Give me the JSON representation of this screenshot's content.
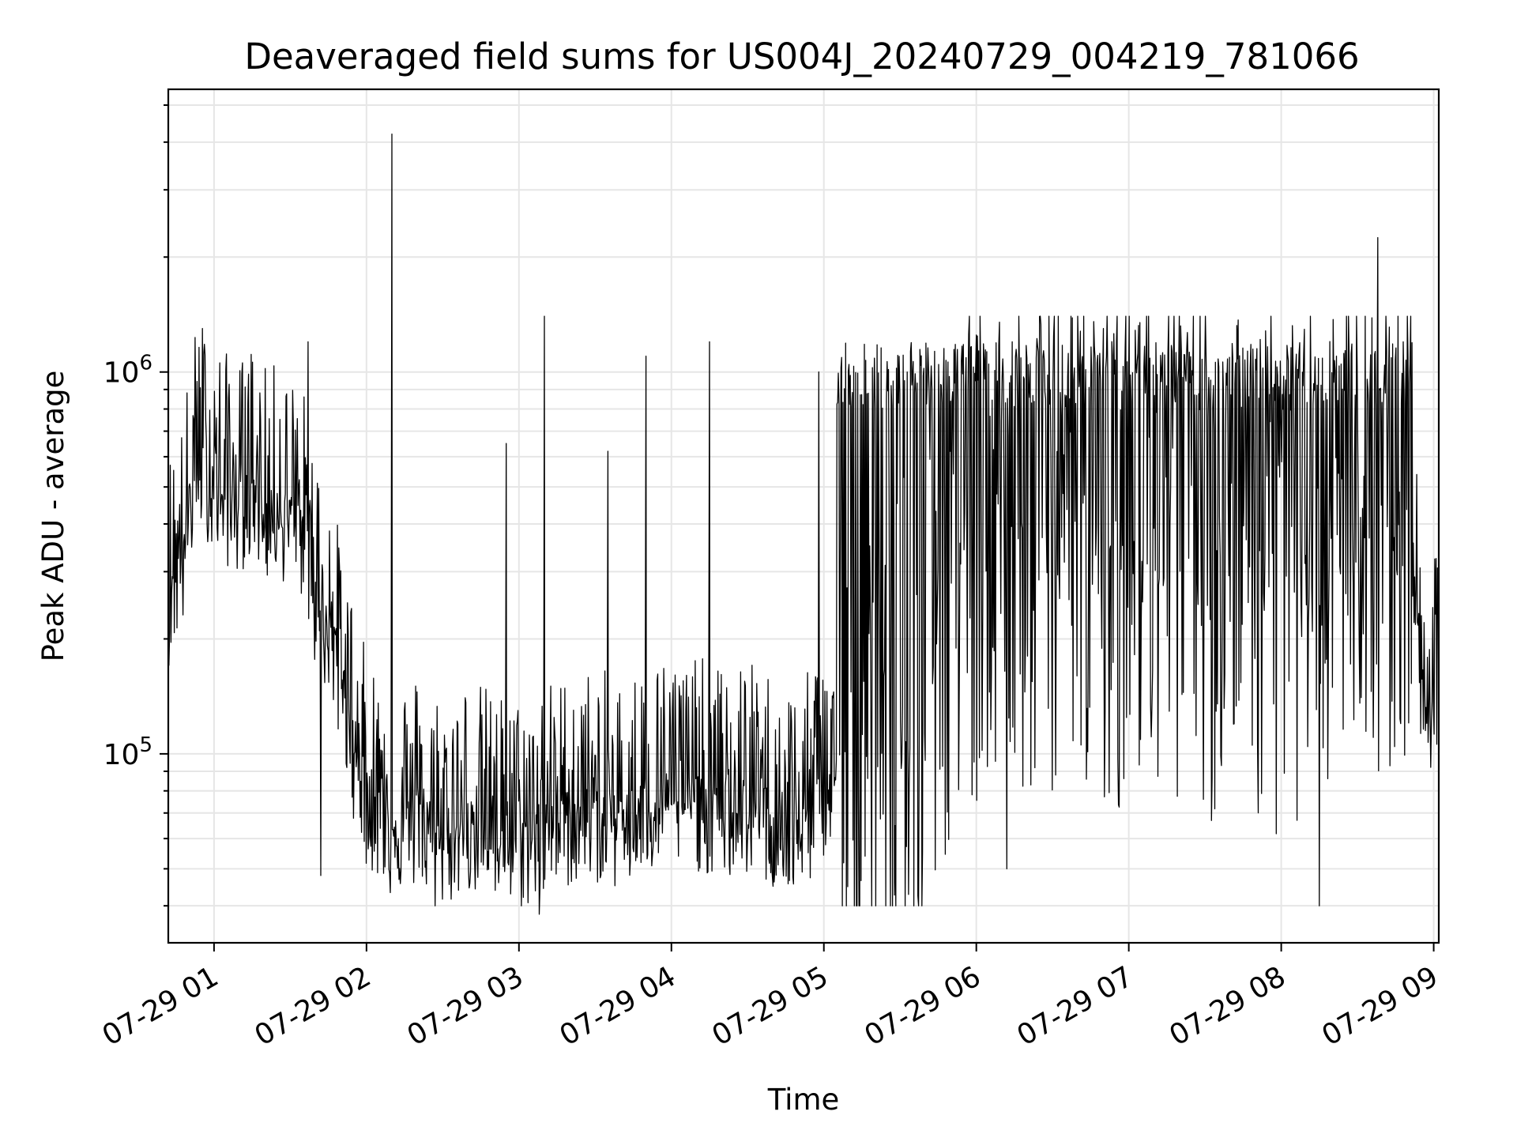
{
  "chart_data": {
    "type": "line",
    "title": "Deaveraged field sums for US004J_20240729_004219_781066",
    "xlabel": "Time",
    "ylabel": "Peak ADU - average",
    "yscale": "log",
    "ylim": [
      32000,
      5500000
    ],
    "xlim": [
      "07-29 00:42:00",
      "07-29 09:02:00"
    ],
    "grid": true,
    "line_color": "#000000",
    "grid_color": "#e6e6e6",
    "x_ticks": [
      "07-29 01",
      "07-29 02",
      "07-29 03",
      "07-29 04",
      "07-29 05",
      "07-29 06",
      "07-29 07",
      "07-29 08",
      "07-29 09"
    ],
    "y_ticks": [
      {
        "base": "10",
        "exp": "5",
        "value": 100000
      },
      {
        "base": "10",
        "exp": "6",
        "value": 1000000
      }
    ],
    "series": [
      {
        "points": [
          [
            "07-29 00:42",
            300000
          ],
          [
            "07-29 00:45",
            350000
          ],
          [
            "07-29 00:48",
            380000
          ],
          [
            "07-29 00:51",
            560000
          ],
          [
            "07-29 00:54",
            700000
          ],
          [
            "07-29 00:57",
            650000
          ],
          [
            "07-29 01:00",
            600000
          ],
          [
            "07-29 01:05",
            550000
          ],
          [
            "07-29 01:10",
            520000
          ],
          [
            "07-29 01:15",
            600000
          ],
          [
            "07-29 01:20",
            500000
          ],
          [
            "07-29 01:25",
            520000
          ],
          [
            "07-29 01:30",
            480000
          ],
          [
            "07-29 01:35",
            450000
          ],
          [
            "07-29 01:40",
            300000
          ],
          [
            "07-29 01:45",
            250000
          ],
          [
            "07-29 01:50",
            180000
          ],
          [
            "07-29 01:55",
            120000
          ],
          [
            "07-29 02:00",
            90000
          ],
          [
            "07-29 02:10",
            75000
          ],
          [
            "07-29 02:20",
            80000
          ],
          [
            "07-29 02:30",
            70000
          ],
          [
            "07-29 02:40",
            78000
          ],
          [
            "07-29 02:50",
            72000
          ],
          [
            "07-29 03:00",
            68000
          ],
          [
            "07-29 03:10",
            75000
          ],
          [
            "07-29 03:20",
            80000
          ],
          [
            "07-29 03:30",
            82000
          ],
          [
            "07-29 03:40",
            78000
          ],
          [
            "07-29 03:50",
            85000
          ],
          [
            "07-29 04:00",
            90000
          ],
          [
            "07-29 04:10",
            88000
          ],
          [
            "07-29 04:20",
            82000
          ],
          [
            "07-29 04:30",
            85000
          ],
          [
            "07-29 04:40",
            80000
          ],
          [
            "07-29 04:50",
            72000
          ],
          [
            "07-29 05:00",
            95000
          ],
          [
            "07-29 05:10",
            120000
          ],
          [
            "07-29 05:20",
            110000
          ],
          [
            "07-29 05:30",
            130000
          ],
          [
            "07-29 05:40",
            200000
          ],
          [
            "07-29 05:50",
            350000
          ],
          [
            "07-29 06:00",
            400000
          ],
          [
            "07-29 06:10",
            380000
          ],
          [
            "07-29 06:20",
            420000
          ],
          [
            "07-29 06:30",
            400000
          ],
          [
            "07-29 06:40",
            450000
          ],
          [
            "07-29 06:50",
            420000
          ],
          [
            "07-29 07:00",
            400000
          ],
          [
            "07-29 07:10",
            380000
          ],
          [
            "07-29 07:20",
            400000
          ],
          [
            "07-29 07:30",
            390000
          ],
          [
            "07-29 07:40",
            380000
          ],
          [
            "07-29 07:50",
            370000
          ],
          [
            "07-29 08:00",
            360000
          ],
          [
            "07-29 08:10",
            380000
          ],
          [
            "07-29 08:20",
            370000
          ],
          [
            "07-29 08:30",
            450000
          ],
          [
            "07-29 08:40",
            500000
          ],
          [
            "07-29 08:50",
            550000
          ],
          [
            "07-29 08:55",
            180000
          ],
          [
            "07-29 09:00",
            160000
          ]
        ],
        "spikes": [
          [
            "07-29 02:10",
            4200000
          ],
          [
            "07-29 03:10",
            1400000
          ],
          [
            "07-29 03:50",
            1100000
          ],
          [
            "07-29 04:15",
            1200000
          ],
          [
            "07-29 04:58",
            1000000
          ],
          [
            "07-29 06:00",
            1250000
          ],
          [
            "07-29 06:50",
            1300000
          ],
          [
            "07-29 08:38",
            2250000
          ],
          [
            "07-29 08:48",
            1200000
          ],
          [
            "07-29 01:37",
            1200000
          ],
          [
            "07-29 02:55",
            650000
          ],
          [
            "07-29 03:35",
            620000
          ]
        ],
        "dips": [
          [
            "07-29 03:08",
            38000
          ],
          [
            "07-29 02:27",
            40000
          ],
          [
            "07-29 08:15",
            40000
          ],
          [
            "07-29 06:12",
            50000
          ],
          [
            "07-29 01:42",
            48000
          ],
          [
            "07-29 04:40",
            45000
          ]
        ]
      }
    ]
  }
}
